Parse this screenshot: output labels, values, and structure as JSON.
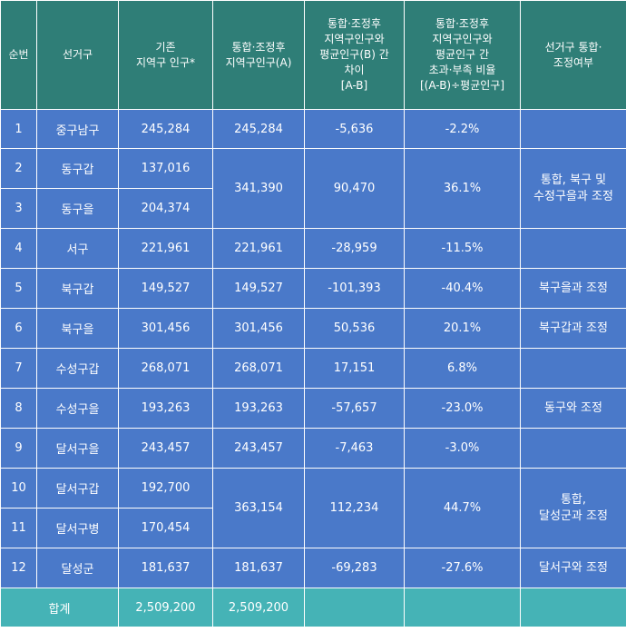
{
  "headers": [
    "순번",
    "선거구",
    "기존\n지역구 인구*",
    "통합·조정후\n지역구인구(A)",
    "통합·조정후\n지역구인구와\n평균인구(B) 간\n차이\n[A-B]",
    "통합·조정후\n지역구인구와\n평균인구 간\n초과·부족 비율\n[(A-B)÷평균인구]",
    "선거구 통합·\n조정여부"
  ],
  "rows": [
    {
      "no": "1",
      "district": "중구남구",
      "pop": "245,284"
    },
    {
      "no": "2",
      "district": "동구갑",
      "pop": "137,016"
    },
    {
      "no": "3",
      "district": "동구을",
      "pop": "204,374"
    },
    {
      "no": "4",
      "district": "서구",
      "pop": "221,961"
    },
    {
      "no": "5",
      "district": "북구갑",
      "pop": "149,527"
    },
    {
      "no": "6",
      "district": "북구을",
      "pop": "301,456"
    },
    {
      "no": "7",
      "district": "수성구갑",
      "pop": "268,071"
    },
    {
      "no": "8",
      "district": "수성구을",
      "pop": "193,263"
    },
    {
      "no": "9",
      "district": "달서구을",
      "pop": "243,457"
    },
    {
      "no": "10",
      "district": "달서구갑",
      "pop": "192,700"
    },
    {
      "no": "11",
      "district": "달서구병",
      "pop": "170,454"
    },
    {
      "no": "12",
      "district": "달성군",
      "pop": "181,637"
    }
  ],
  "groups": [
    {
      "pop_a": "245,284",
      "diff": "-5,636",
      "ratio": "-2.2%",
      "note": ""
    },
    {
      "pop_a": "341,390",
      "diff": "90,470",
      "ratio": "36.1%",
      "note": "통합, 북구 및\n수정구을과 조정"
    },
    {
      "pop_a": "221,961",
      "diff": "-28,959",
      "ratio": "-11.5%",
      "note": ""
    },
    {
      "pop_a": "149,527",
      "diff": "-101,393",
      "ratio": "-40.4%",
      "note": "북구을과 조정"
    },
    {
      "pop_a": "301,456",
      "diff": "50,536",
      "ratio": "20.1%",
      "note": "북구갑과 조정"
    },
    {
      "pop_a": "268,071",
      "diff": "17,151",
      "ratio": "6.8%",
      "note": ""
    },
    {
      "pop_a": "193,263",
      "diff": "-57,657",
      "ratio": "-23.0%",
      "note": "동구와 조정"
    },
    {
      "pop_a": "243,457",
      "diff": "-7,463",
      "ratio": "-3.0%",
      "note": ""
    },
    {
      "pop_a": "363,154",
      "diff": "112,234",
      "ratio": "44.7%",
      "note": "통합,\n달성군과 조정"
    },
    {
      "pop_a": "181,637",
      "diff": "-69,283",
      "ratio": "-27.6%",
      "note": "달서구와 조정"
    }
  ],
  "total": {
    "label": "합계",
    "pop": "2,509,200",
    "pop_a": "2,509,200"
  },
  "colors": {
    "header_bg": "#2f7e77",
    "body_bg": "#4a79c9",
    "total_bg": "#45b3b6"
  }
}
